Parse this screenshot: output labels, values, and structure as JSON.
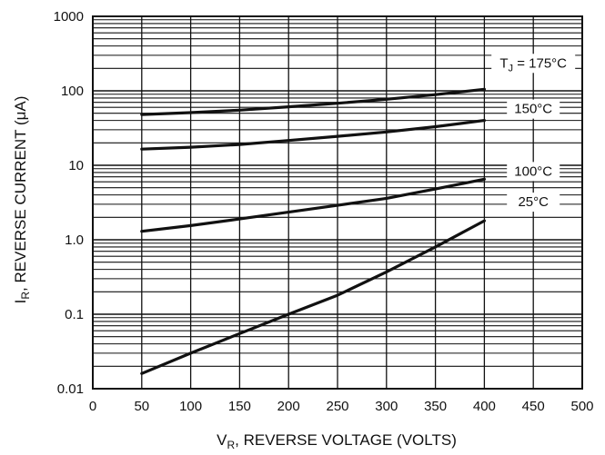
{
  "chart_data": {
    "type": "line",
    "y_scale": "log",
    "xlim": [
      0,
      500
    ],
    "ylim": [
      0.01,
      1000
    ],
    "x_ticks": [
      "0",
      "50",
      "100",
      "150",
      "200",
      "250",
      "300",
      "350",
      "400",
      "450",
      "500"
    ],
    "y_ticks": [
      "0.01",
      "0.1",
      "1.0",
      "10",
      "100",
      "1000"
    ],
    "xlabel": {
      "main": "V",
      "sub": "R",
      "rest": ", REVERSE VOLTAGE (VOLTS)"
    },
    "ylabel": {
      "main": "I",
      "sub": "R",
      "rest": ", REVERSE CURRENT (μA)"
    },
    "grid": true,
    "series": [
      {
        "name": "T",
        "name_sub": "J",
        "name_rest": " = 175°C",
        "x": [
          50,
          100,
          150,
          200,
          250,
          300,
          350,
          400
        ],
        "y": [
          48,
          51,
          55,
          61,
          68,
          77,
          89,
          105
        ]
      },
      {
        "name": "150°C",
        "x": [
          50,
          100,
          150,
          200,
          250,
          300,
          350,
          400
        ],
        "y": [
          16.5,
          17.5,
          19,
          21.5,
          24.5,
          28,
          33,
          40
        ]
      },
      {
        "name": "100°C",
        "x": [
          50,
          100,
          150,
          200,
          250,
          300,
          350,
          400
        ],
        "y": [
          1.3,
          1.55,
          1.9,
          2.35,
          2.9,
          3.6,
          4.8,
          6.5
        ]
      },
      {
        "name": "25°C",
        "x": [
          50,
          100,
          150,
          200,
          250,
          300,
          350,
          400
        ],
        "y": [
          0.016,
          0.03,
          0.055,
          0.1,
          0.18,
          0.37,
          0.8,
          1.8
        ]
      }
    ]
  }
}
